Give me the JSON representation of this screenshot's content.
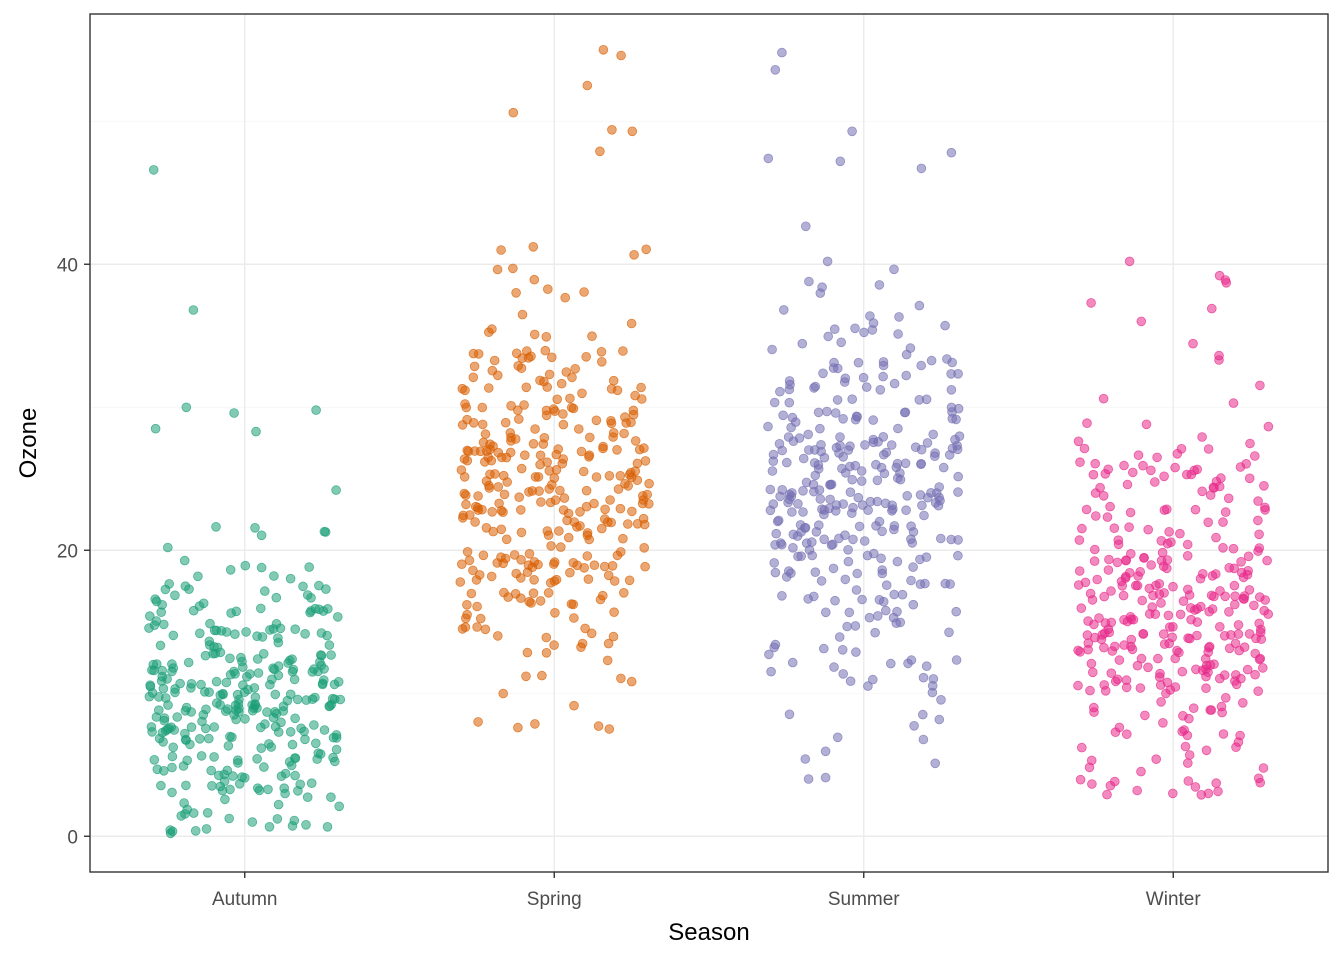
{
  "chart_data": {
    "type": "scatter",
    "subtype": "jitter",
    "title": "",
    "xlabel": "Season",
    "ylabel": "Ozone",
    "categories": [
      "Autumn",
      "Spring",
      "Summer",
      "Winter"
    ],
    "ylim": [
      -2.5,
      57.5
    ],
    "yticks": [
      0,
      20,
      40
    ],
    "ytick_labels": [
      "0",
      "20",
      "40"
    ],
    "grid": true,
    "legend": "none",
    "point_alpha": 0.55,
    "series": [
      {
        "category": "Autumn",
        "color": "#1b9e77",
        "n": 330,
        "center": 9.5,
        "spread": 5.0,
        "min": 0.2,
        "max": 46.6,
        "extremes": [
          46.6,
          36.8,
          30.0,
          29.8,
          29.6,
          28.5,
          28.3,
          0.8,
          0.2,
          1.0
        ]
      },
      {
        "category": "Spring",
        "color": "#d95f02",
        "n": 340,
        "center": 24.0,
        "spread": 6.5,
        "min": 7.5,
        "max": 55.0,
        "extremes": [
          55.0,
          54.6,
          52.5,
          50.6,
          49.4,
          49.3,
          47.9,
          7.5,
          7.6,
          8.0
        ]
      },
      {
        "category": "Summer",
        "color": "#7570b3",
        "n": 340,
        "center": 24.0,
        "spread": 7.0,
        "min": 4.0,
        "max": 54.8,
        "extremes": [
          54.8,
          53.6,
          49.3,
          47.8,
          47.4,
          47.2,
          46.7,
          4.0,
          4.1,
          5.1
        ]
      },
      {
        "category": "Winter",
        "color": "#e7298a",
        "n": 340,
        "center": 15.5,
        "spread": 6.5,
        "min": 2.9,
        "max": 40.2,
        "extremes": [
          40.2,
          39.2,
          38.9,
          38.7,
          37.3,
          36.9,
          36.0,
          2.9,
          3.0,
          3.2
        ]
      }
    ]
  }
}
